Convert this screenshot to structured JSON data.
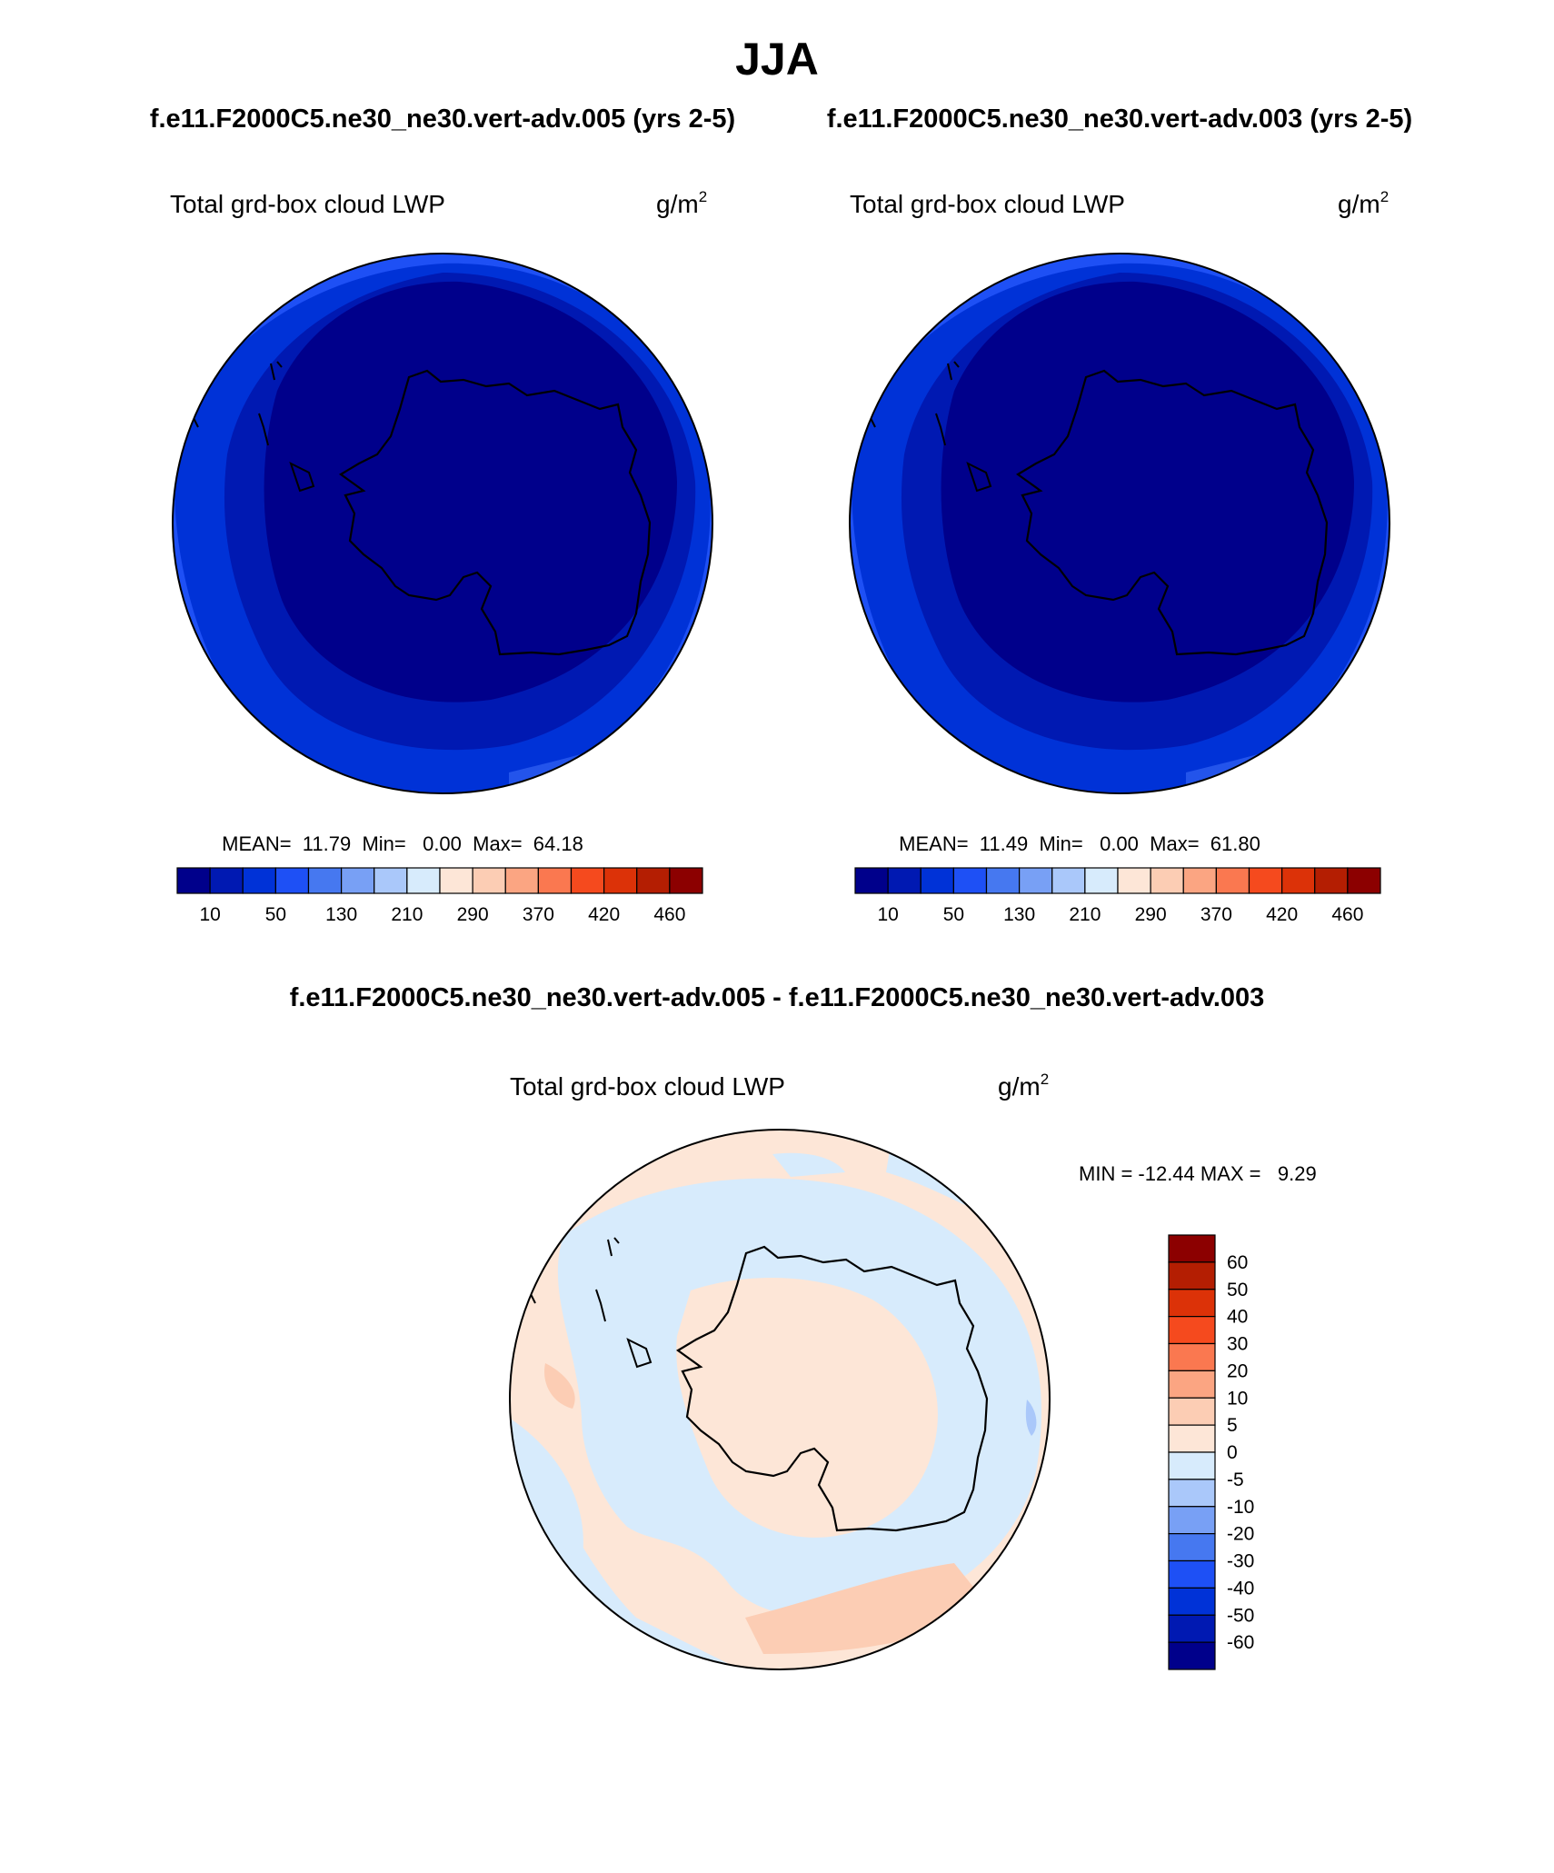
{
  "page": {
    "title": "JJA",
    "subtitle_left": "f.e11.F2000C5.ne30_ne30.vert-adv.005 (yrs 2-5)",
    "subtitle_right": "f.e11.F2000C5.ne30_ne30.vert-adv.003 (yrs 2-5)",
    "diff_title": "f.e11.F2000C5.ne30_ne30.vert-adv.005 - f.e11.F2000C5.ne30_ne30.vert-adv.003"
  },
  "panels": [
    {
      "id": "left",
      "variable": "Total grd-box cloud LWP",
      "units_base": "g/m",
      "units_exp": "2",
      "stats": "MEAN=  11.79  Min=   0.00  Max=  64.18",
      "colorbar_labels": [
        "10",
        "50",
        "130",
        "210",
        "290",
        "370",
        "420",
        "460"
      ]
    },
    {
      "id": "right",
      "variable": "Total grd-box cloud LWP",
      "units_base": "g/m",
      "units_exp": "2",
      "stats": "MEAN=  11.49  Min=   0.00  Max=  61.80",
      "colorbar_labels": [
        "10",
        "50",
        "130",
        "210",
        "290",
        "370",
        "420",
        "460"
      ]
    }
  ],
  "diff_panel": {
    "variable": "Total grd-box cloud LWP",
    "units_base": "g/m",
    "units_exp": "2",
    "stats": "MIN = -12.44 MAX =   9.29",
    "colorbar_labels": [
      "60",
      "50",
      "40",
      "30",
      "20",
      "10",
      "5",
      "0",
      "-5",
      "-10",
      "-20",
      "-30",
      "-40",
      "-50",
      "-60"
    ]
  },
  "colors": {
    "scale_16": [
      "#00008b",
      "#0019b2",
      "#0032d7",
      "#1e50f5",
      "#4678f0",
      "#78a0f5",
      "#aac8fa",
      "#d7ebfc",
      "#fde6d7",
      "#fccdb4",
      "#fba582",
      "#fa7850",
      "#f54a1e",
      "#dc3208",
      "#b41e02",
      "#8c0000"
    ],
    "lwp_deep": "#00008b",
    "lwp_mid": "#0019b2",
    "lwp_outer": "#0032d7",
    "lwp_edge": "#1e50f5",
    "diff_neg": "#d7ebfc",
    "diff_pos": "#fde6d7",
    "diff_pos2": "#fccdb4",
    "diff_neg2": "#aac8fa",
    "coast": "#000000"
  }
}
